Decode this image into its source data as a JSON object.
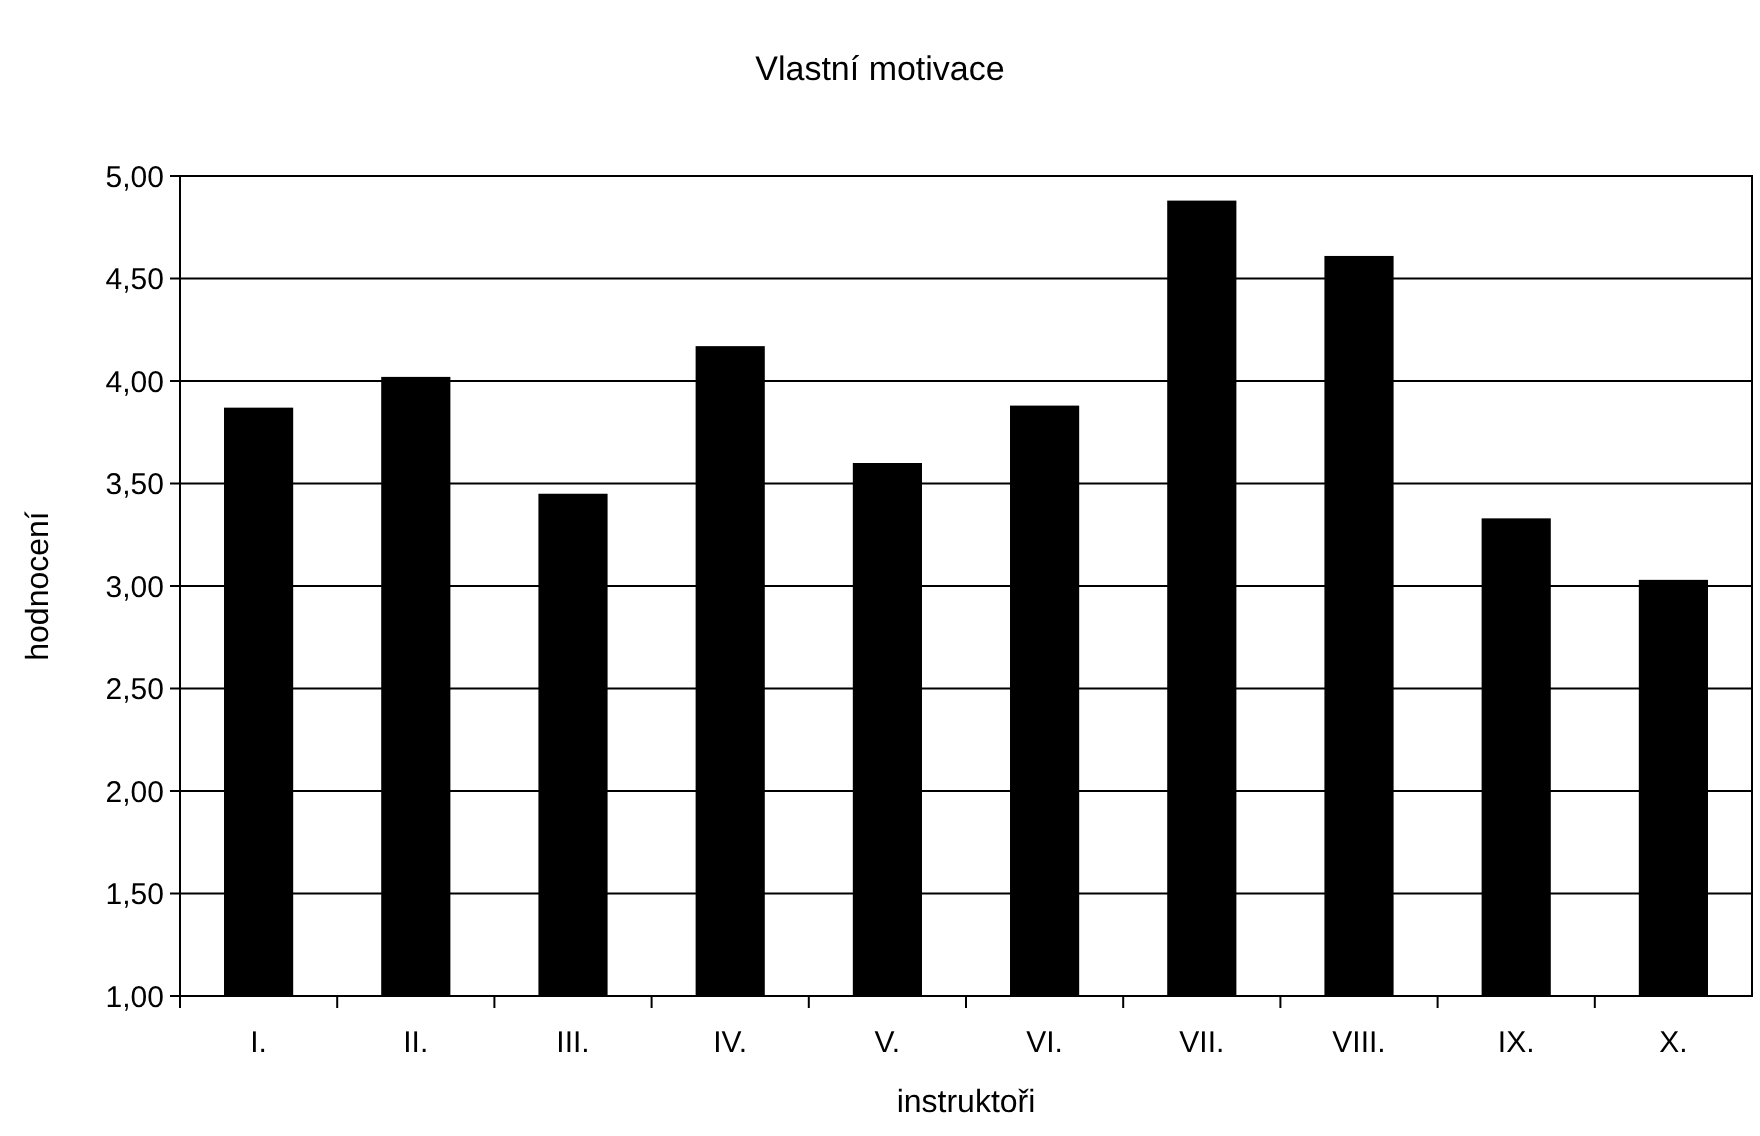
{
  "chart_data": {
    "type": "bar",
    "title": "Vlastní motivace",
    "xlabel": "instruktoři",
    "ylabel": "hodnocení",
    "categories": [
      "I.",
      "II.",
      "III.",
      "IV.",
      "V.",
      "VI.",
      "VII.",
      "VIII.",
      "IX.",
      "X."
    ],
    "values": [
      3.87,
      4.02,
      3.45,
      4.17,
      3.6,
      3.88,
      4.88,
      4.61,
      3.33,
      3.03
    ],
    "color": "#000000",
    "ylim": [
      1,
      5
    ],
    "yticks": [
      {
        "value": 1,
        "label": "1,00"
      },
      {
        "value": 1.5,
        "label": "1,50"
      },
      {
        "value": 2,
        "label": "2,00"
      },
      {
        "value": 2.5,
        "label": "2,50"
      },
      {
        "value": 3,
        "label": "3,00"
      },
      {
        "value": 3.5,
        "label": "3,50"
      },
      {
        "value": 4,
        "label": "4,00"
      },
      {
        "value": 4.5,
        "label": "4,50"
      },
      {
        "value": 5,
        "label": "5,00"
      }
    ],
    "grid": "y"
  }
}
